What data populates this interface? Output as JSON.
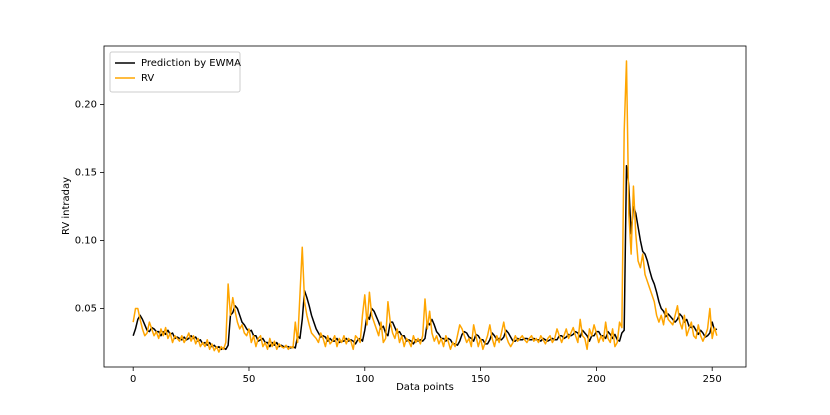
{
  "chart_data": {
    "type": "line",
    "xlabel": "Data points",
    "ylabel": "RV intraday",
    "xlim": [
      -12.6,
      264.6
    ],
    "ylim": [
      0.007,
      0.243
    ],
    "xticks": [
      0,
      50,
      100,
      150,
      200,
      250
    ],
    "yticks": [
      0.05,
      {
        "value": 0.1,
        "label": "0.10"
      },
      0.15,
      {
        "value": 0.2,
        "label": "0.20"
      }
    ],
    "grid": false,
    "legend": "upper left",
    "x": [
      0,
      1,
      2,
      3,
      4,
      5,
      6,
      7,
      8,
      9,
      10,
      11,
      12,
      13,
      14,
      15,
      16,
      17,
      18,
      19,
      20,
      21,
      22,
      23,
      24,
      25,
      26,
      27,
      28,
      29,
      30,
      31,
      32,
      33,
      34,
      35,
      36,
      37,
      38,
      39,
      40,
      41,
      42,
      43,
      44,
      45,
      46,
      47,
      48,
      49,
      50,
      51,
      52,
      53,
      54,
      55,
      56,
      57,
      58,
      59,
      60,
      61,
      62,
      63,
      64,
      65,
      66,
      67,
      68,
      69,
      70,
      71,
      72,
      73,
      74,
      75,
      76,
      77,
      78,
      79,
      80,
      81,
      82,
      83,
      84,
      85,
      86,
      87,
      88,
      89,
      90,
      91,
      92,
      93,
      94,
      95,
      96,
      97,
      98,
      99,
      100,
      101,
      102,
      103,
      104,
      105,
      106,
      107,
      108,
      109,
      110,
      111,
      112,
      113,
      114,
      115,
      116,
      117,
      118,
      119,
      120,
      121,
      122,
      123,
      124,
      125,
      126,
      127,
      128,
      129,
      130,
      131,
      132,
      133,
      134,
      135,
      136,
      137,
      138,
      139,
      140,
      141,
      142,
      143,
      144,
      145,
      146,
      147,
      148,
      149,
      150,
      151,
      152,
      153,
      154,
      155,
      156,
      157,
      158,
      159,
      160,
      161,
      162,
      163,
      164,
      165,
      166,
      167,
      168,
      169,
      170,
      171,
      172,
      173,
      174,
      175,
      176,
      177,
      178,
      179,
      180,
      181,
      182,
      183,
      184,
      185,
      186,
      187,
      188,
      189,
      190,
      191,
      192,
      193,
      194,
      195,
      196,
      197,
      198,
      199,
      200,
      201,
      202,
      203,
      204,
      205,
      206,
      207,
      208,
      209,
      210,
      211,
      212,
      213,
      214,
      215,
      216,
      217,
      218,
      219,
      220,
      221,
      222,
      223,
      224,
      225,
      226,
      227,
      228,
      229,
      230,
      231,
      232,
      233,
      234,
      235,
      236,
      237,
      238,
      239,
      240,
      241,
      242,
      243,
      244,
      245,
      246,
      247,
      248,
      249,
      250,
      251,
      252
    ],
    "series": [
      {
        "name": "Prediction by EWMA",
        "color": "#000000",
        "values": [
          0.03,
          0.035,
          0.042,
          0.045,
          0.042,
          0.038,
          0.034,
          0.033,
          0.036,
          0.035,
          0.033,
          0.033,
          0.03,
          0.033,
          0.031,
          0.034,
          0.031,
          0.032,
          0.028,
          0.029,
          0.028,
          0.027,
          0.029,
          0.027,
          0.028,
          0.03,
          0.028,
          0.029,
          0.026,
          0.027,
          0.024,
          0.025,
          0.023,
          0.025,
          0.022,
          0.023,
          0.021,
          0.022,
          0.02,
          0.021,
          0.02,
          0.023,
          0.045,
          0.047,
          0.052,
          0.05,
          0.045,
          0.04,
          0.038,
          0.035,
          0.033,
          0.034,
          0.03,
          0.03,
          0.026,
          0.027,
          0.028,
          0.025,
          0.025,
          0.022,
          0.025,
          0.023,
          0.025,
          0.022,
          0.023,
          0.022,
          0.022,
          0.022,
          0.021,
          0.022,
          0.021,
          0.03,
          0.028,
          0.042,
          0.063,
          0.058,
          0.052,
          0.045,
          0.04,
          0.035,
          0.032,
          0.029,
          0.03,
          0.029,
          0.026,
          0.028,
          0.026,
          0.026,
          0.028,
          0.025,
          0.026,
          0.026,
          0.028,
          0.026,
          0.027,
          0.026,
          0.024,
          0.027,
          0.028,
          0.026,
          0.034,
          0.045,
          0.042,
          0.05,
          0.048,
          0.044,
          0.04,
          0.035,
          0.037,
          0.032,
          0.03,
          0.04,
          0.04,
          0.036,
          0.032,
          0.033,
          0.03,
          0.03,
          0.026,
          0.027,
          0.026,
          0.024,
          0.027,
          0.026,
          0.027,
          0.026,
          0.028,
          0.04,
          0.038,
          0.042,
          0.038,
          0.033,
          0.031,
          0.028,
          0.028,
          0.026,
          0.028,
          0.027,
          0.024,
          0.024,
          0.023,
          0.026,
          0.031,
          0.033,
          0.032,
          0.029,
          0.028,
          0.026,
          0.031,
          0.03,
          0.027,
          0.027,
          0.024,
          0.024,
          0.027,
          0.032,
          0.03,
          0.027,
          0.028,
          0.027,
          0.029,
          0.034,
          0.032,
          0.029,
          0.026,
          0.026,
          0.028,
          0.027,
          0.027,
          0.028,
          0.028,
          0.027,
          0.027,
          0.028,
          0.027,
          0.027,
          0.026,
          0.028,
          0.027,
          0.026,
          0.027,
          0.028,
          0.027,
          0.027,
          0.03,
          0.03,
          0.028,
          0.029,
          0.031,
          0.03,
          0.031,
          0.033,
          0.032,
          0.029,
          0.034,
          0.032,
          0.03,
          0.026,
          0.03,
          0.03,
          0.033,
          0.033,
          0.03,
          0.03,
          0.028,
          0.033,
          0.031,
          0.028,
          0.031,
          0.027,
          0.026,
          0.032,
          0.034,
          0.155,
          0.14,
          0.105,
          0.125,
          0.12,
          0.11,
          0.1,
          0.092,
          0.09,
          0.085,
          0.078,
          0.072,
          0.068,
          0.062,
          0.055,
          0.05,
          0.048,
          0.044,
          0.046,
          0.044,
          0.042,
          0.04,
          0.042,
          0.046,
          0.044,
          0.04,
          0.042,
          0.037,
          0.036,
          0.037,
          0.034,
          0.031,
          0.034,
          0.032,
          0.029,
          0.03,
          0.032,
          0.04,
          0.034,
          0.035
        ]
      },
      {
        "name": "RV",
        "color": "#ffa500",
        "values": [
          0.04,
          0.05,
          0.05,
          0.042,
          0.035,
          0.03,
          0.032,
          0.04,
          0.035,
          0.03,
          0.033,
          0.028,
          0.035,
          0.03,
          0.036,
          0.028,
          0.032,
          0.025,
          0.03,
          0.028,
          0.026,
          0.03,
          0.025,
          0.028,
          0.032,
          0.026,
          0.03,
          0.024,
          0.028,
          0.022,
          0.025,
          0.022,
          0.027,
          0.02,
          0.024,
          0.019,
          0.022,
          0.018,
          0.022,
          0.02,
          0.025,
          0.068,
          0.045,
          0.058,
          0.048,
          0.04,
          0.035,
          0.038,
          0.032,
          0.03,
          0.035,
          0.025,
          0.03,
          0.022,
          0.028,
          0.03,
          0.022,
          0.025,
          0.02,
          0.028,
          0.022,
          0.026,
          0.02,
          0.024,
          0.022,
          0.021,
          0.023,
          0.02,
          0.022,
          0.021,
          0.04,
          0.025,
          0.06,
          0.095,
          0.055,
          0.045,
          0.038,
          0.032,
          0.03,
          0.028,
          0.025,
          0.032,
          0.028,
          0.022,
          0.03,
          0.024,
          0.026,
          0.03,
          0.022,
          0.028,
          0.025,
          0.03,
          0.024,
          0.028,
          0.026,
          0.02,
          0.03,
          0.028,
          0.025,
          0.045,
          0.06,
          0.038,
          0.062,
          0.045,
          0.04,
          0.035,
          0.03,
          0.04,
          0.025,
          0.028,
          0.055,
          0.04,
          0.032,
          0.028,
          0.035,
          0.025,
          0.03,
          0.022,
          0.028,
          0.026,
          0.022,
          0.03,
          0.025,
          0.028,
          0.024,
          0.03,
          0.057,
          0.035,
          0.048,
          0.032,
          0.026,
          0.03,
          0.024,
          0.028,
          0.022,
          0.03,
          0.026,
          0.02,
          0.025,
          0.022,
          0.03,
          0.038,
          0.035,
          0.03,
          0.025,
          0.028,
          0.022,
          0.038,
          0.03,
          0.022,
          0.028,
          0.02,
          0.025,
          0.03,
          0.038,
          0.028,
          0.022,
          0.03,
          0.025,
          0.032,
          0.04,
          0.03,
          0.025,
          0.022,
          0.025,
          0.03,
          0.026,
          0.028,
          0.03,
          0.027,
          0.025,
          0.028,
          0.03,
          0.026,
          0.028,
          0.025,
          0.03,
          0.027,
          0.024,
          0.028,
          0.03,
          0.025,
          0.028,
          0.035,
          0.03,
          0.025,
          0.03,
          0.035,
          0.028,
          0.032,
          0.036,
          0.03,
          0.025,
          0.042,
          0.03,
          0.028,
          0.02,
          0.035,
          0.03,
          0.038,
          0.032,
          0.025,
          0.03,
          0.026,
          0.04,
          0.028,
          0.025,
          0.035,
          0.022,
          0.025,
          0.04,
          0.036,
          0.18,
          0.232,
          0.12,
          0.09,
          0.14,
          0.105,
          0.085,
          0.08,
          0.09,
          0.075,
          0.07,
          0.065,
          0.06,
          0.055,
          0.045,
          0.04,
          0.045,
          0.038,
          0.05,
          0.042,
          0.04,
          0.038,
          0.045,
          0.052,
          0.04,
          0.035,
          0.045,
          0.03,
          0.035,
          0.04,
          0.03,
          0.028,
          0.038,
          0.03,
          0.026,
          0.03,
          0.035,
          0.05,
          0.028,
          0.036,
          0.03
        ]
      }
    ]
  }
}
